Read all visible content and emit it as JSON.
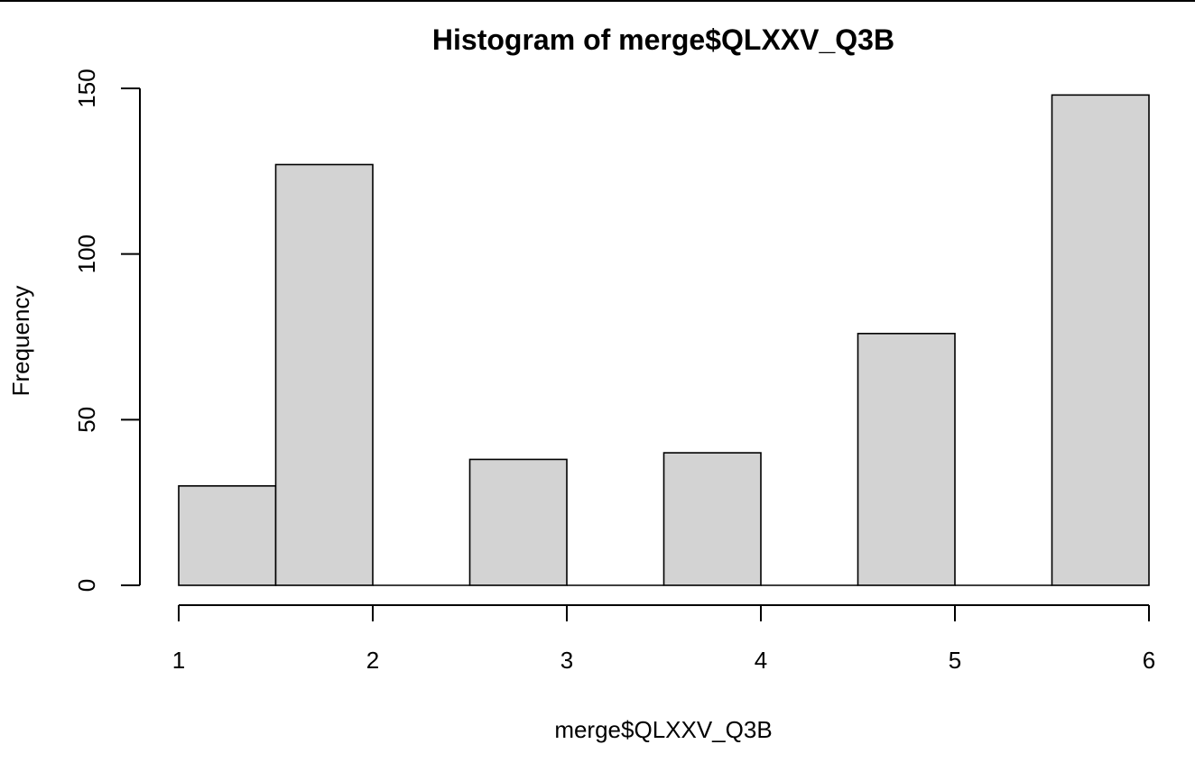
{
  "chart_data": {
    "type": "bar",
    "title": "Histogram of merge$QLXXV_Q3B",
    "xlabel": "merge$QLXXV_Q3B",
    "ylabel": "Frequency",
    "bins": [
      {
        "start": 1.0,
        "end": 1.5,
        "count": 30
      },
      {
        "start": 1.5,
        "end": 2.0,
        "count": 127
      },
      {
        "start": 2.0,
        "end": 2.5,
        "count": 0
      },
      {
        "start": 2.5,
        "end": 3.0,
        "count": 38
      },
      {
        "start": 3.0,
        "end": 3.5,
        "count": 0
      },
      {
        "start": 3.5,
        "end": 4.0,
        "count": 40
      },
      {
        "start": 4.0,
        "end": 4.5,
        "count": 0
      },
      {
        "start": 4.5,
        "end": 5.0,
        "count": 76
      },
      {
        "start": 5.0,
        "end": 5.5,
        "count": 0
      },
      {
        "start": 5.5,
        "end": 6.0,
        "count": 148
      }
    ],
    "xlim": [
      1,
      6
    ],
    "ylim": [
      0,
      150
    ],
    "x_ticks": [
      1,
      2,
      3,
      4,
      5,
      6
    ],
    "y_ticks": [
      0,
      50,
      100,
      150
    ],
    "bar_fill": "#d3d3d3",
    "bar_stroke": "#000000",
    "grid": false
  }
}
